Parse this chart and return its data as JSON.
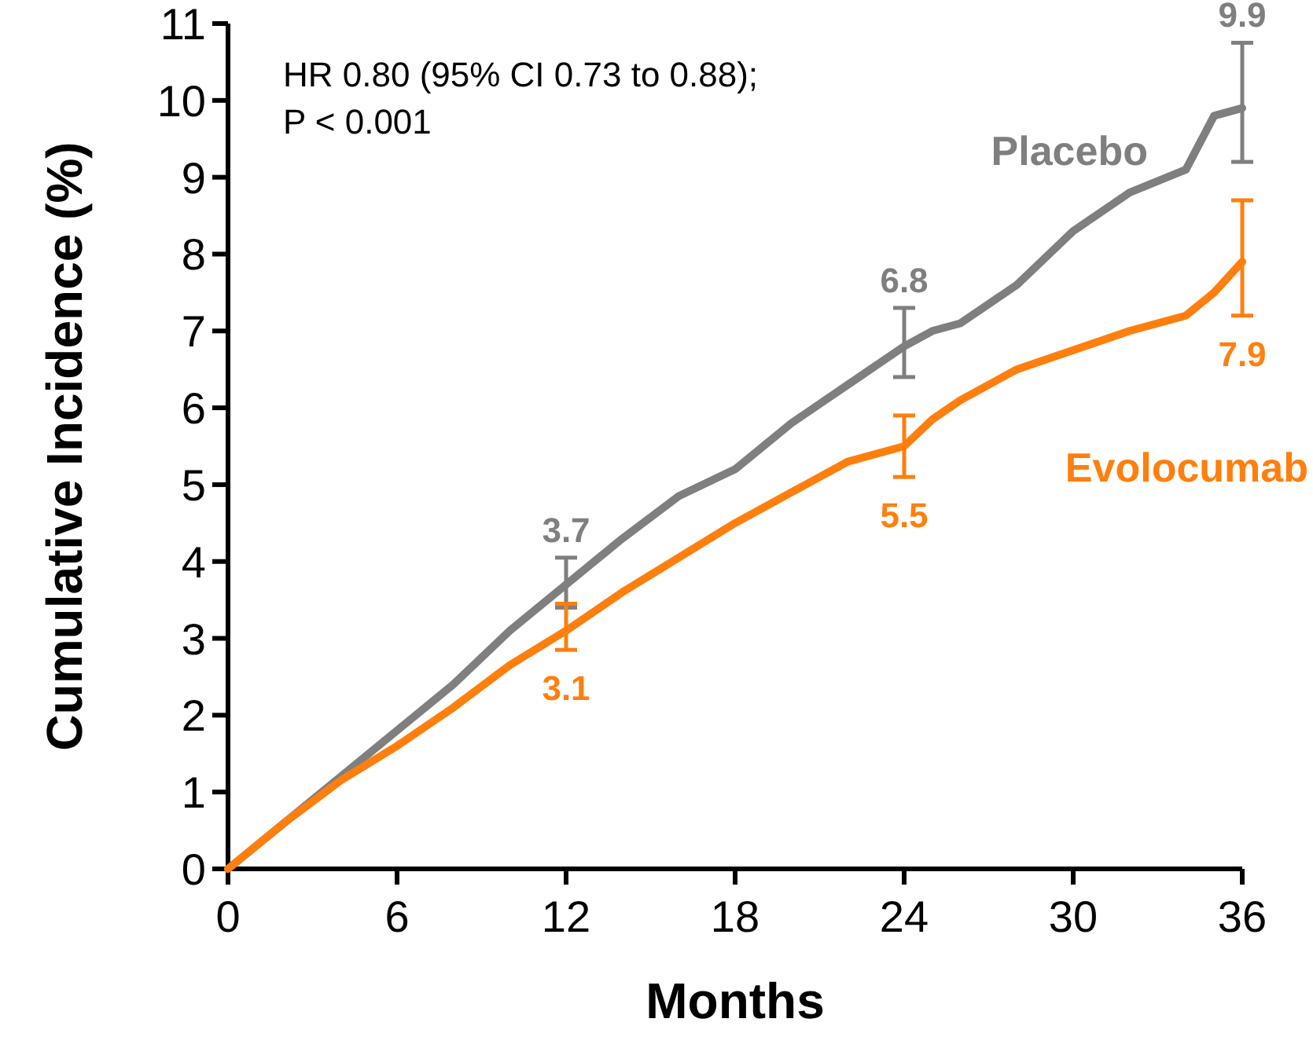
{
  "chart_data": {
    "type": "line",
    "xlabel": "Months",
    "ylabel": "Cumulative Incidence (%)",
    "xlim": [
      0,
      36
    ],
    "xticks": [
      0,
      6,
      12,
      18,
      24,
      30,
      36
    ],
    "ylim": [
      0,
      11
    ],
    "yticks": [
      0,
      1,
      2,
      3,
      4,
      5,
      6,
      7,
      8,
      9,
      10,
      11
    ],
    "x": [
      0,
      2,
      4,
      6,
      8,
      10,
      12,
      14,
      16,
      18,
      20,
      22,
      24,
      25,
      26,
      28,
      30,
      32,
      34,
      35,
      36
    ],
    "legend": false,
    "marker": "none",
    "line_style": "solid",
    "annotations": [
      "HR 0.80 (95% CI 0.73 to 0.88);",
      "P < 0.001"
    ],
    "series": [
      {
        "name": "Placebo",
        "color": "#7f7f7f",
        "values": [
          0,
          0.6,
          1.2,
          1.8,
          2.4,
          3.1,
          3.7,
          4.3,
          4.85,
          5.2,
          5.8,
          6.3,
          6.8,
          7.0,
          7.1,
          7.6,
          8.3,
          8.8,
          9.1,
          9.8,
          9.9
        ],
        "errors": [
          null,
          null,
          null,
          null,
          null,
          null,
          [
            3.4,
            4.05
          ],
          null,
          null,
          null,
          null,
          null,
          [
            6.4,
            7.3
          ],
          null,
          null,
          null,
          null,
          null,
          null,
          null,
          [
            9.2,
            10.75
          ]
        ],
        "value_labels": [
          null,
          null,
          null,
          null,
          null,
          null,
          "3.7",
          null,
          null,
          null,
          null,
          null,
          "6.8",
          null,
          null,
          null,
          null,
          null,
          null,
          null,
          "9.9"
        ]
      },
      {
        "name": "Evolocumab",
        "color": "#ff7f0e",
        "values": [
          0,
          0.6,
          1.15,
          1.6,
          2.1,
          2.65,
          3.1,
          3.6,
          4.05,
          4.5,
          4.9,
          5.3,
          5.5,
          5.85,
          6.1,
          6.5,
          6.75,
          7.0,
          7.2,
          7.5,
          7.9
        ],
        "errors": [
          null,
          null,
          null,
          null,
          null,
          null,
          [
            2.85,
            3.45
          ],
          null,
          null,
          null,
          null,
          null,
          [
            5.1,
            5.9
          ],
          null,
          null,
          null,
          null,
          null,
          null,
          null,
          [
            7.2,
            8.7
          ]
        ],
        "value_labels": [
          null,
          null,
          null,
          null,
          null,
          null,
          "3.1",
          null,
          null,
          null,
          null,
          null,
          "5.5",
          null,
          null,
          null,
          null,
          null,
          null,
          null,
          "7.9"
        ]
      }
    ]
  }
}
